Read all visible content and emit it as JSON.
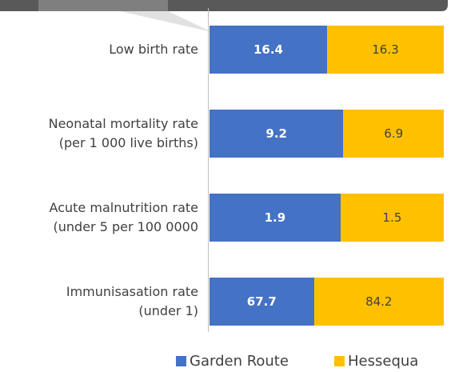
{
  "chart_data": {
    "type": "bar",
    "orientation": "horizontal",
    "stacking": "percent",
    "categories": [
      "Low birth rate",
      "Neonatal mortality rate\n(per 1 000 live births)",
      "Acute malnutrition rate\n(under 5 per 100 0000",
      "Immunisasation rate\n(under 1)"
    ],
    "series": [
      {
        "name": "Garden Route",
        "color": "#4472c4",
        "label_color": "#ffffff",
        "values": [
          16.4,
          9.2,
          1.9,
          67.7
        ]
      },
      {
        "name": "Hessequa",
        "color": "#ffc000",
        "label_color": "#404040",
        "values": [
          16.3,
          6.9,
          1.5,
          84.2
        ]
      }
    ],
    "legend": "bottom"
  }
}
